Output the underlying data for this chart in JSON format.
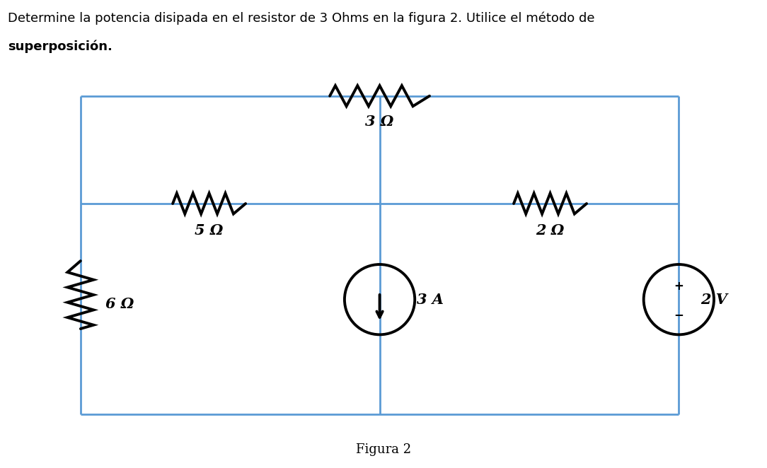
{
  "title_line1": "Determine la potencia disipada en el resistor de 3 Ohms en la figura 2. Utilice el método de",
  "title_line2_bold": "superposición.",
  "figura_label": "Figura 2",
  "line_color": "#5b9bd5",
  "component_color": "#000000",
  "bg_color": "#ffffff",
  "resistor_3_label": "3 Ω",
  "resistor_5_label": "5 Ω",
  "resistor_2_label": "2 Ω",
  "resistor_6_label": "6 Ω",
  "current_source_label": "3 A",
  "voltage_source_label": "2 V",
  "xL": 0.105,
  "xM": 0.495,
  "xR": 0.885,
  "yT": 0.795,
  "yMid": 0.565,
  "yB": 0.115
}
